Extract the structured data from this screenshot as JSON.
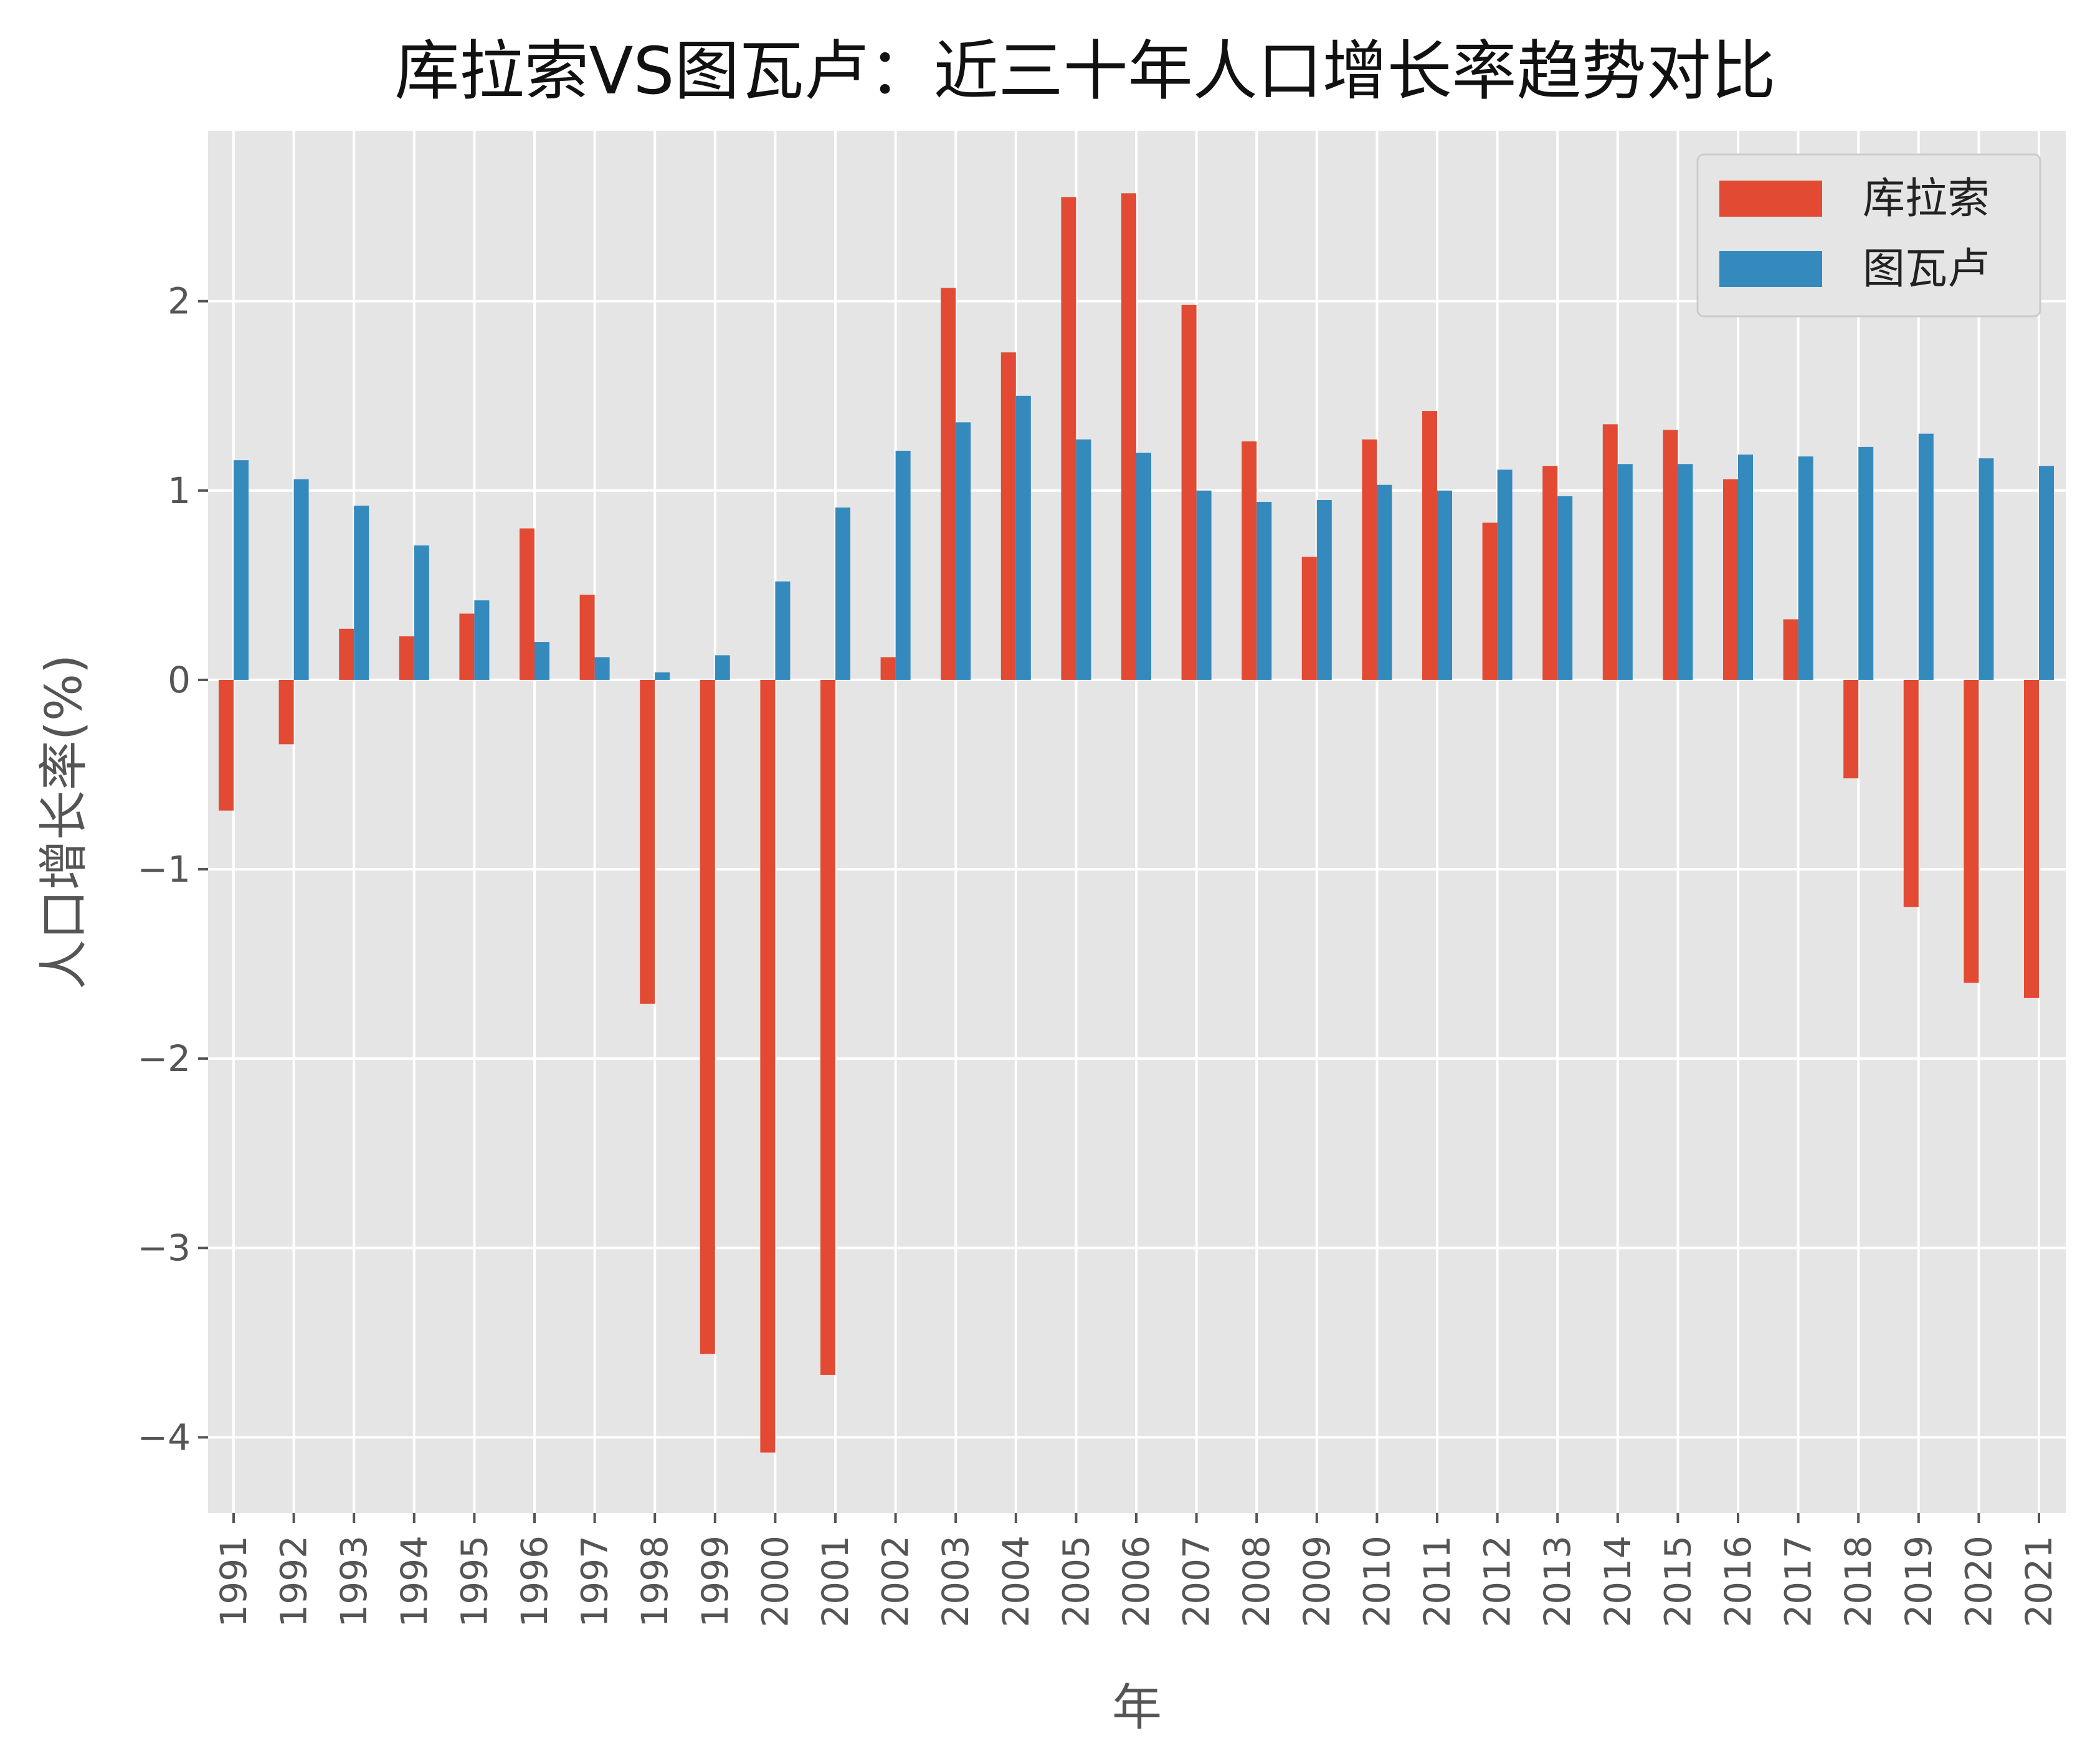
{
  "chart_data": {
    "type": "bar",
    "title": "库拉索VS图瓦卢：近三十年人口增长率趋势对比",
    "xlabel": "年",
    "ylabel": "人口增长率(%)",
    "ylim": [
      -4.4,
      2.9
    ],
    "yticks": [
      -4,
      -3,
      -2,
      -1,
      0,
      1,
      2
    ],
    "ytick_labels": [
      "−4",
      "−3",
      "−2",
      "−1",
      "0",
      "1",
      "2"
    ],
    "grid": true,
    "legend_position": "top-right",
    "categories": [
      "1991",
      "1992",
      "1993",
      "1994",
      "1995",
      "1996",
      "1997",
      "1998",
      "1999",
      "2000",
      "2001",
      "2002",
      "2003",
      "2004",
      "2005",
      "2006",
      "2007",
      "2008",
      "2009",
      "2010",
      "2011",
      "2012",
      "2013",
      "2014",
      "2015",
      "2016",
      "2017",
      "2018",
      "2019",
      "2020",
      "2021"
    ],
    "series": [
      {
        "name": "库拉索",
        "color": "#E24A33",
        "values": [
          -0.69,
          -0.34,
          0.27,
          0.23,
          0.35,
          0.8,
          0.45,
          -1.71,
          -3.56,
          -4.08,
          -3.67,
          0.12,
          2.07,
          1.73,
          2.55,
          2.57,
          1.98,
          1.26,
          0.65,
          1.27,
          1.42,
          0.83,
          1.13,
          1.35,
          1.32,
          1.06,
          0.32,
          -0.52,
          -1.2,
          -1.6,
          -1.68
        ]
      },
      {
        "name": "图瓦卢",
        "color": "#348ABD",
        "values": [
          1.16,
          1.06,
          0.92,
          0.71,
          0.42,
          0.2,
          0.12,
          0.04,
          0.13,
          0.52,
          0.91,
          1.21,
          1.36,
          1.5,
          1.27,
          1.2,
          1.0,
          0.94,
          0.95,
          1.03,
          1.0,
          1.11,
          0.97,
          1.14,
          1.14,
          1.19,
          1.18,
          1.23,
          1.3,
          1.17,
          1.13
        ]
      }
    ]
  }
}
